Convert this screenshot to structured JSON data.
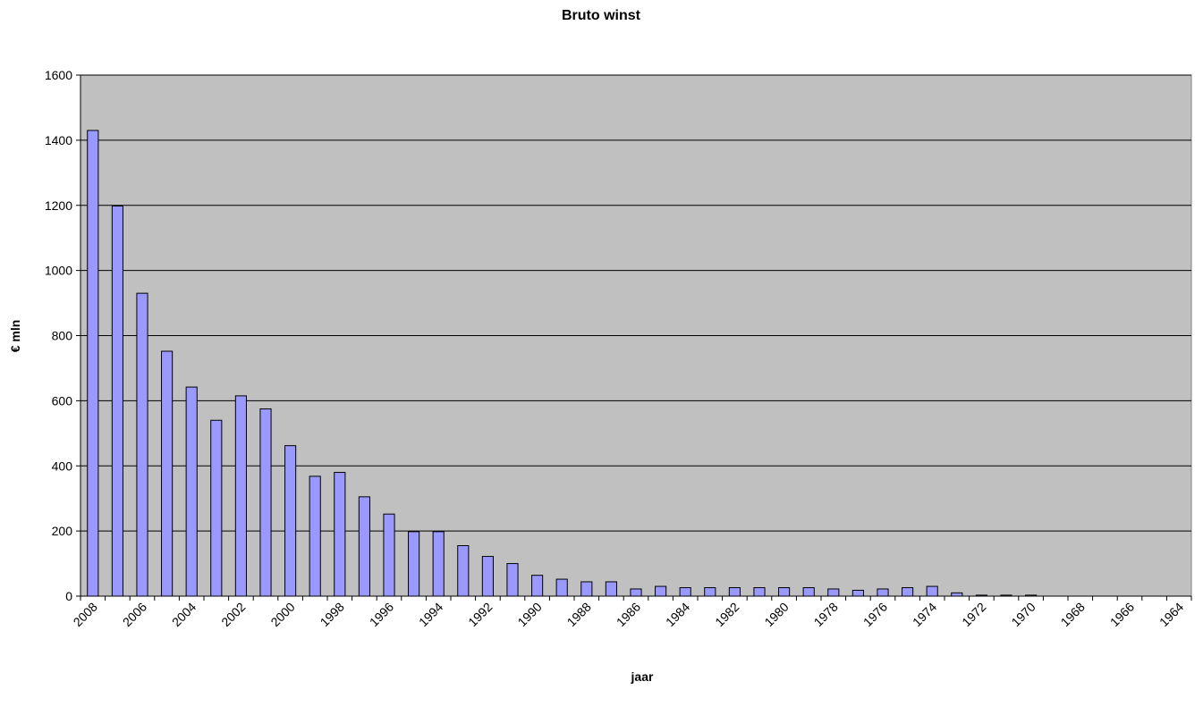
{
  "chart_data": {
    "type": "bar",
    "title": "Bruto winst",
    "xlabel": "jaar",
    "ylabel": "€ mln",
    "ylim": [
      0,
      1600
    ],
    "yticks": [
      0,
      200,
      400,
      600,
      800,
      1000,
      1200,
      1400,
      1600
    ],
    "grid": true,
    "legend": "none",
    "colors": {
      "plot_background": "#c0c0c0",
      "bar_fill": "#9999ff",
      "bar_stroke": "#000000",
      "gridline": "#000000"
    },
    "x_tick_labels": [
      "2008",
      "2006",
      "2004",
      "2002",
      "2000",
      "1998",
      "1996",
      "1994",
      "1992",
      "1990",
      "1988",
      "1986",
      "1984",
      "1982",
      "1980",
      "1978",
      "1976",
      "1974",
      "1972",
      "1970",
      "1968",
      "1966",
      "1964"
    ],
    "categories": [
      "2008",
      "2007",
      "2006",
      "2005",
      "2004",
      "2003",
      "2002",
      "2001",
      "2000",
      "1999",
      "1998",
      "1997",
      "1996",
      "1995",
      "1994",
      "1993",
      "1992",
      "1991",
      "1990",
      "1989",
      "1988",
      "1987",
      "1986",
      "1985",
      "1984",
      "1983",
      "1982",
      "1981",
      "1980",
      "1979",
      "1978",
      "1977",
      "1976",
      "1975",
      "1974",
      "1973",
      "1972",
      "1971",
      "1970",
      "1969",
      "1968",
      "1967",
      "1966",
      "1965",
      "1964"
    ],
    "values": [
      1430,
      1198,
      930,
      752,
      642,
      540,
      615,
      575,
      462,
      368,
      380,
      305,
      252,
      198,
      198,
      155,
      122,
      100,
      64,
      52,
      44,
      44,
      22,
      30,
      26,
      26,
      26,
      26,
      26,
      26,
      22,
      18,
      22,
      26,
      30,
      10,
      3,
      3,
      3,
      0,
      0,
      0,
      0,
      0,
      0
    ]
  }
}
